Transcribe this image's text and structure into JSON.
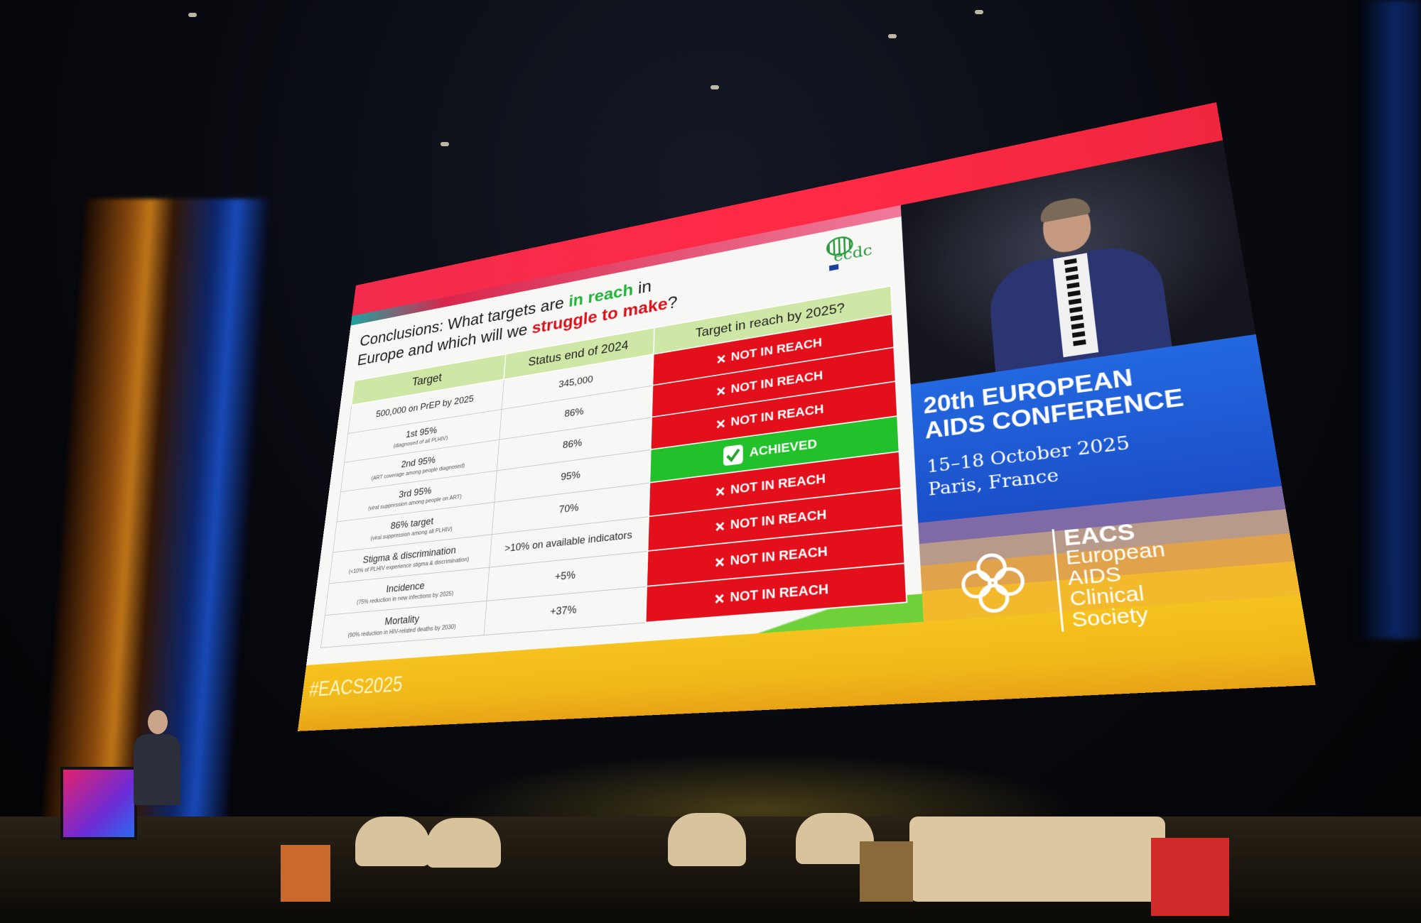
{
  "slide": {
    "title": {
      "before": "Conclusions: What targets are",
      "reach": "in reach",
      "middle": "in Europe and which will we",
      "struggle": "struggle to make",
      "end": "?"
    },
    "logo": "ecdc",
    "table": {
      "headers": [
        "Target",
        "Status end of 2024",
        "Target in reach by 2025?"
      ],
      "rows": [
        {
          "target": "500,000 on PrEP by 2025",
          "status": "345,000",
          "reach": {
            "label": "NOT IN REACH",
            "icon": "cross",
            "color": "#e3101c"
          }
        },
        {
          "target": "1st 95%",
          "note": "(diagnosed of all PLHIV)",
          "status": "86%",
          "reach": {
            "label": "NOT IN REACH",
            "icon": "cross",
            "color": "#e3101c"
          }
        },
        {
          "target": "2nd 95%",
          "note": "(ART coverage among people diagnosed)",
          "status": "86%",
          "reach": {
            "label": "NOT IN REACH",
            "icon": "cross",
            "color": "#e3101c"
          }
        },
        {
          "target": "3rd 95%",
          "note": "(viral suppression among people on ART)",
          "status": "95%",
          "reach": {
            "label": "ACHIEVED",
            "icon": "check",
            "color": "#22c02a"
          }
        },
        {
          "target": "86% target",
          "note": "(viral suppression among all PLHIV)",
          "status": "70%",
          "reach": {
            "label": "NOT IN REACH",
            "icon": "cross",
            "color": "#e3101c"
          }
        },
        {
          "target": "Stigma & discrimination",
          "note": "(<10% of PLHIV experience stigma & discrimination)",
          "status": ">10% on available indicators",
          "reach": {
            "label": "NOT IN REACH",
            "icon": "cross",
            "color": "#e3101c"
          }
        },
        {
          "target": "Incidence",
          "note": "(75% reduction in new infections by 2025)",
          "status": "+5%",
          "reach": {
            "label": "NOT IN REACH",
            "icon": "cross",
            "color": "#e3101c"
          }
        },
        {
          "target": "Mortality",
          "note": "(90% reduction in HIV-related deaths by 2030)",
          "status": "+37%",
          "reach": {
            "label": "NOT IN REACH",
            "icon": "cross",
            "color": "#e3101c"
          }
        }
      ]
    },
    "hashtag": "#EACS2025"
  },
  "panel": {
    "conference": [
      "20th EUROPEAN",
      "AIDS CONFERENCE"
    ],
    "dates": "15–18 October 2025",
    "place": "Paris, France",
    "society": [
      "EACS",
      "European",
      "AIDS",
      "Clinical",
      "Society"
    ]
  }
}
